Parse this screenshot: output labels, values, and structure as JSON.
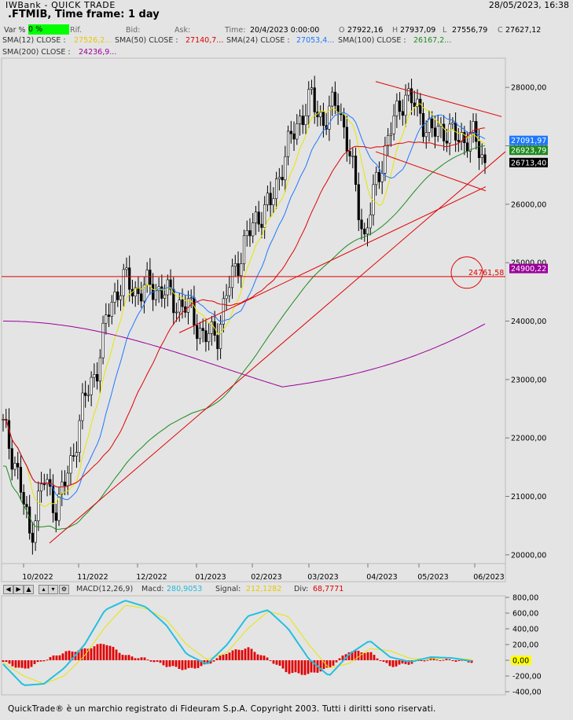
{
  "app": {
    "title": "IWBank - QUICK TRADE",
    "datetime": "28/05/2023, 16:38"
  },
  "instrument": {
    "title": ".FTMIB, Time frame: 1 day"
  },
  "quote": {
    "var_label": "Var %",
    "var_value": "0 %",
    "rif_label": "Rif.",
    "bid_label": "Bid:",
    "ask_label": "Ask:",
    "time_label": "Time:",
    "time_value": "20/4/2023 0:00:00",
    "o_label": "O",
    "o_value": "27922,16",
    "h_label": "H",
    "h_value": "27937,09",
    "l_label": "L",
    "l_value": "27556,79",
    "c_label": "C",
    "c_value": "27627,12"
  },
  "indicators": [
    {
      "label": "SMA(12) CLOSE :",
      "value": "27526,2...",
      "color": "#e6e600"
    },
    {
      "label": "SMA(50) CLOSE :",
      "value": "27140,7...",
      "color": "#e00000"
    },
    {
      "label": "SMA(24) CLOSE :",
      "value": "27053,4...",
      "color": "#1e78ff"
    },
    {
      "label": "SMA(100) CLOSE :",
      "value": "26167,2...",
      "color": "#1f8a1f"
    },
    {
      "label": "SMA(200) CLOSE :",
      "value": "24236,9...",
      "color": "#9a009a"
    }
  ],
  "macd_header": {
    "name": "MACD(12,26,9)",
    "macd_label": "Macd:",
    "macd_value": "280,9053",
    "signal_label": "Signal:",
    "signal_value": "212,1282",
    "div_label": "Div:",
    "div_value": "68,7771"
  },
  "toolbar_icons": [
    "arrow-left-icon",
    "arrow-right-icon",
    "arrow-up-icon",
    "arrow-down-icon",
    "gear-icon"
  ],
  "footer": "QuickTrade® è un marchio registrato di Fideuram S.p.A. Copyright 2003. Tutti i diritti sono riservati.",
  "colors": {
    "sma12": "#e6e600",
    "sma24": "#1e78ff",
    "sma50": "#e00000",
    "sma100": "#1f8a1f",
    "sma200": "#9a009a",
    "macd": "#22c0e0",
    "signal": "#e6e600",
    "histogram": "#e00000",
    "trendline": "#e00000"
  },
  "chart_data": [
    {
      "type": "candlestick",
      "title": ".FTMIB, Time frame: 1 day",
      "x_labels": [
        "10/2022",
        "11/2022",
        "12/2022",
        "01/2023",
        "02/2023",
        "03/2023",
        "04/2023",
        "05/2023",
        "06/2023"
      ],
      "y_ticks": [
        "28000,00",
        "27000,00",
        "26000,00",
        "25000,00",
        "24000,00",
        "23000,00",
        "22000,00",
        "21000,00",
        "20000,00"
      ],
      "ylim": [
        19850,
        28500
      ],
      "grid": false,
      "price_tags": [
        {
          "text": "27091,97",
          "value": 27091.97,
          "bg": "#1e78ff",
          "fg": "#ffffff"
        },
        {
          "text": "26923,79",
          "value": 26923.79,
          "bg": "#1f8a1f",
          "fg": "#ffffff"
        },
        {
          "text": "26713,40",
          "value": 26713.4,
          "bg": "#000000",
          "fg": "#ffffff"
        },
        {
          "text": "24900,22",
          "value": 24900.22,
          "bg": "#9a009a",
          "fg": "#ffffff"
        }
      ],
      "annotation": {
        "text": "24761,58",
        "value": 24761.58
      },
      "close_points": [
        [
          "09/2022",
          22200
        ],
        [
          "09/2022",
          21500
        ],
        [
          "10/2022",
          20300
        ],
        [
          "10/2022",
          21300
        ],
        [
          "10/2022",
          20800
        ],
        [
          "11/2022",
          21500
        ],
        [
          "11/2022",
          22600
        ],
        [
          "11/2022",
          23200
        ],
        [
          "11/2022",
          24300
        ],
        [
          "11/2022",
          24700
        ],
        [
          "12/2022",
          24500
        ],
        [
          "12/2022",
          24600
        ],
        [
          "12/2022",
          24500
        ],
        [
          "12/2022",
          24300
        ],
        [
          "12/2022",
          24200
        ],
        [
          "01/2023",
          23700
        ],
        [
          "01/2023",
          23800
        ],
        [
          "01/2023",
          24700
        ],
        [
          "01/2023",
          25300
        ],
        [
          "01/2023",
          25800
        ],
        [
          "02/2023",
          26000
        ],
        [
          "02/2023",
          26800
        ],
        [
          "02/2023",
          27400
        ],
        [
          "03/2023",
          27800
        ],
        [
          "03/2023",
          27400
        ],
        [
          "03/2023",
          27800
        ],
        [
          "03/2023",
          26700
        ],
        [
          "03/2023",
          25400
        ],
        [
          "04/2023",
          26500
        ],
        [
          "04/2023",
          27300
        ],
        [
          "04/2023",
          27900
        ],
        [
          "04/2023",
          27600
        ],
        [
          "05/2023",
          27200
        ],
        [
          "05/2023",
          27300
        ],
        [
          "05/2023",
          27100
        ],
        [
          "05/2023",
          27200
        ],
        [
          "05/2023",
          26700
        ]
      ],
      "overlays": [
        "SMA(12)",
        "SMA(24)",
        "SMA(50)",
        "SMA(100)",
        "SMA(200)",
        "trendlines"
      ]
    },
    {
      "type": "bar+line",
      "title": "MACD(12,26,9)",
      "y_ticks": [
        "800,00",
        "600,00",
        "400,00",
        "200,00",
        "0,00",
        "-200,00",
        "-400,00"
      ],
      "ylim": [
        -440,
        820
      ],
      "series": [
        {
          "name": "Macd",
          "values": [
            -50,
            -320,
            -300,
            -100,
            200,
            640,
            760,
            680,
            450,
            80,
            -50,
            200,
            560,
            640,
            400,
            20,
            -200,
            80,
            250,
            40,
            -20,
            40,
            30,
            -10
          ]
        },
        {
          "name": "Signal",
          "values": [
            -30,
            -200,
            -300,
            -200,
            60,
            420,
            700,
            660,
            520,
            200,
            10,
            100,
            400,
            620,
            560,
            200,
            -100,
            -40,
            150,
            120,
            20,
            20,
            30,
            10
          ]
        },
        {
          "name": "Div",
          "values": [
            -20,
            -120,
            0,
            100,
            140,
            220,
            60,
            20,
            -70,
            -120,
            -60,
            100,
            160,
            20,
            -160,
            -180,
            -100,
            120,
            100,
            -80,
            -40,
            20,
            0,
            -20
          ]
        }
      ]
    }
  ]
}
